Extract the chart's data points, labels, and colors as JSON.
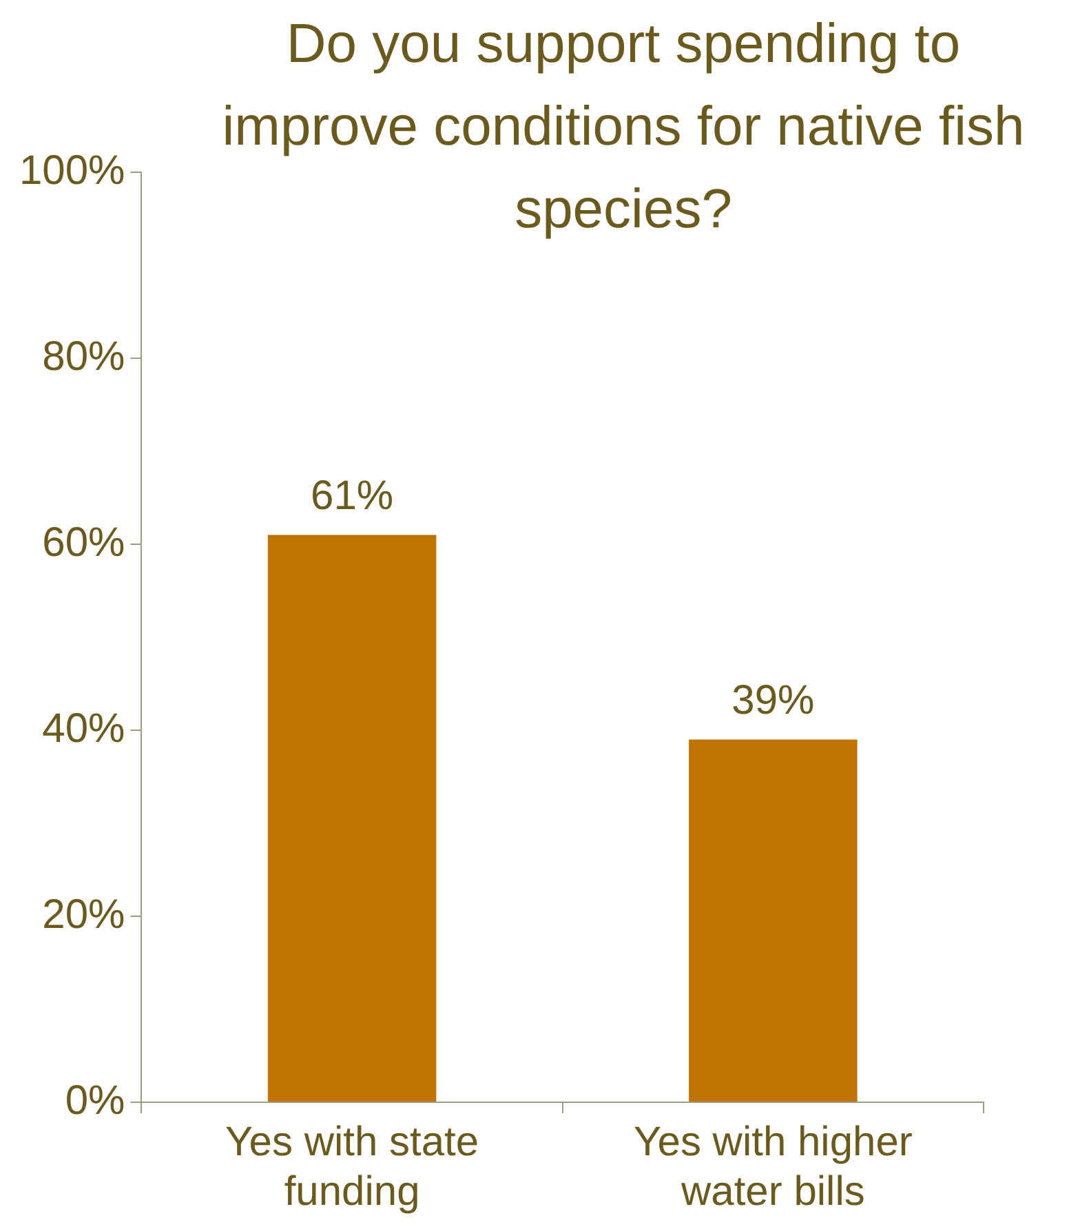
{
  "chart_data": {
    "type": "bar",
    "title": "Do you support spending to improve conditions for native fish species?",
    "categories": [
      "Yes with state funding",
      "Yes with higher water bills"
    ],
    "values": [
      61,
      39
    ],
    "color": "#c07300",
    "ylim": [
      0,
      100
    ],
    "yticks": [
      {
        "value": 0,
        "label": "0%"
      },
      {
        "value": 20,
        "label": "20%"
      },
      {
        "value": 40,
        "label": "40%"
      },
      {
        "value": 60,
        "label": "60%"
      },
      {
        "value": 80,
        "label": "80%"
      },
      {
        "value": 100,
        "label": "100%"
      }
    ],
    "value_labels": [
      "61%",
      "39%"
    ],
    "grid": false,
    "legend": false
  }
}
